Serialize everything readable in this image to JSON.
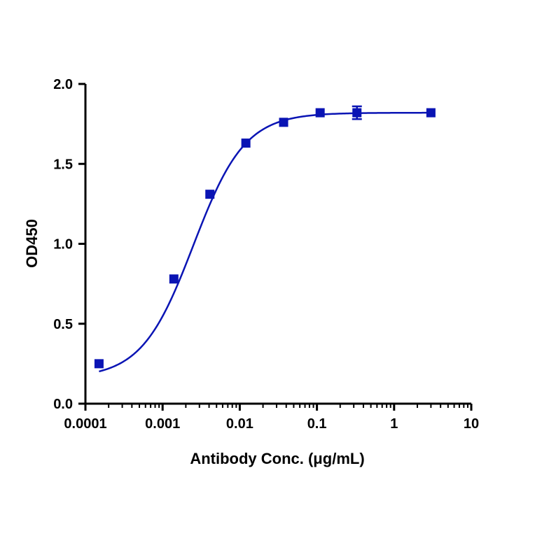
{
  "chart_data": {
    "type": "scatter",
    "xlabel": "Antibody Conc. (μg/mL)",
    "ylabel": "OD450",
    "x_scale": "log",
    "xlim": [
      0.0001,
      10
    ],
    "ylim": [
      0,
      2.0
    ],
    "x_ticks": [
      "0.0001",
      "0.001",
      "0.01",
      "0.1",
      "1",
      "10"
    ],
    "y_ticks": [
      "0.0",
      "0.5",
      "1.0",
      "1.5",
      "2.0"
    ],
    "series": [
      {
        "color": "#0A14B4",
        "marker": "square",
        "x": [
          0.00015,
          0.0014,
          0.0041,
          0.012,
          0.037,
          0.11,
          0.33,
          3.0
        ],
        "y": [
          0.25,
          0.78,
          1.31,
          1.63,
          1.76,
          1.82,
          1.82,
          1.82
        ],
        "error": [
          0.01,
          0.01,
          0.01,
          0.01,
          0.01,
          0.01,
          0.04,
          0.01
        ]
      }
    ],
    "fit_curve": {
      "model": "4PL",
      "bottom": 0.16,
      "top": 1.82,
      "ec50": 0.0025,
      "hill": 1.3
    },
    "grid": false,
    "legend": "none"
  }
}
